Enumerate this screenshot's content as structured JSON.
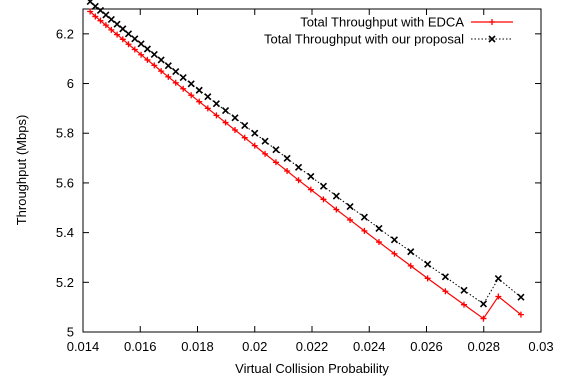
{
  "chart_data": {
    "type": "line",
    "xlabel": "Virtual Collision Probability",
    "ylabel": "Throughput (Mbps)",
    "xlim": [
      0.014,
      0.03
    ],
    "ylim": [
      5.0,
      6.3
    ],
    "xticks": [
      0.014,
      0.016,
      0.018,
      0.02,
      0.022,
      0.024,
      0.026,
      0.028,
      0.03
    ],
    "xtick_labels": [
      "0.014",
      "0.016",
      "0.018",
      "0.02",
      "0.022",
      "0.024",
      "0.026",
      "0.028",
      "0.03"
    ],
    "yticks": [
      5.0,
      5.2,
      5.4,
      5.6,
      5.8,
      6.0,
      6.2
    ],
    "ytick_labels": [
      "5",
      "5.2",
      "5.4",
      "5.6",
      "5.8",
      "6",
      "6.2"
    ],
    "grid": false,
    "legend_position": "top-right",
    "series": [
      {
        "name": "Total Throughput with EDCA",
        "color": "#ff0000",
        "line_style": "solid",
        "marker": "plus",
        "x": [
          0.01425,
          0.01443,
          0.01461,
          0.0148,
          0.01499,
          0.01519,
          0.01539,
          0.01559,
          0.01581,
          0.01603,
          0.01625,
          0.01649,
          0.01673,
          0.01698,
          0.01724,
          0.0175,
          0.01778,
          0.01806,
          0.01836,
          0.01866,
          0.01898,
          0.01931,
          0.01965,
          0.02,
          0.02036,
          0.02074,
          0.02113,
          0.02153,
          0.02196,
          0.0224,
          0.02285,
          0.02333,
          0.02383,
          0.02434,
          0.02488,
          0.02545,
          0.02604,
          0.02666,
          0.02731,
          0.02799,
          0.02851,
          0.0293
        ],
        "y": [
          6.29,
          6.27,
          6.253,
          6.235,
          6.216,
          6.197,
          6.178,
          6.158,
          6.137,
          6.116,
          6.095,
          6.073,
          6.05,
          6.027,
          6.003,
          5.979,
          5.953,
          5.927,
          5.9,
          5.872,
          5.843,
          5.813,
          5.782,
          5.75,
          5.717,
          5.683,
          5.648,
          5.611,
          5.573,
          5.534,
          5.493,
          5.451,
          5.407,
          5.362,
          5.315,
          5.266,
          5.216,
          5.164,
          5.11,
          5.054,
          5.143,
          5.07
        ]
      },
      {
        "name": "Total Throughput with our proposal",
        "color": "#000000",
        "line_style": "dotted",
        "marker": "x",
        "x": [
          0.01425,
          0.01443,
          0.01461,
          0.0148,
          0.01499,
          0.01519,
          0.01539,
          0.01559,
          0.01581,
          0.01603,
          0.01625,
          0.01649,
          0.01673,
          0.01698,
          0.01724,
          0.0175,
          0.01778,
          0.01806,
          0.01836,
          0.01866,
          0.01898,
          0.01931,
          0.01965,
          0.02,
          0.02036,
          0.02074,
          0.02113,
          0.02153,
          0.02196,
          0.0224,
          0.02285,
          0.02333,
          0.02383,
          0.02434,
          0.02488,
          0.02545,
          0.02604,
          0.02666,
          0.02731,
          0.02799,
          0.02851,
          0.0293
        ],
        "y": [
          6.33,
          6.311,
          6.294,
          6.276,
          6.258,
          6.239,
          6.22,
          6.2,
          6.18,
          6.16,
          6.139,
          6.117,
          6.095,
          6.072,
          6.048,
          6.024,
          5.999,
          5.973,
          5.947,
          5.919,
          5.891,
          5.862,
          5.831,
          5.8,
          5.768,
          5.734,
          5.699,
          5.663,
          5.626,
          5.587,
          5.547,
          5.505,
          5.462,
          5.417,
          5.371,
          5.323,
          5.273,
          5.222,
          5.168,
          5.113,
          5.215,
          5.14
        ]
      }
    ]
  }
}
